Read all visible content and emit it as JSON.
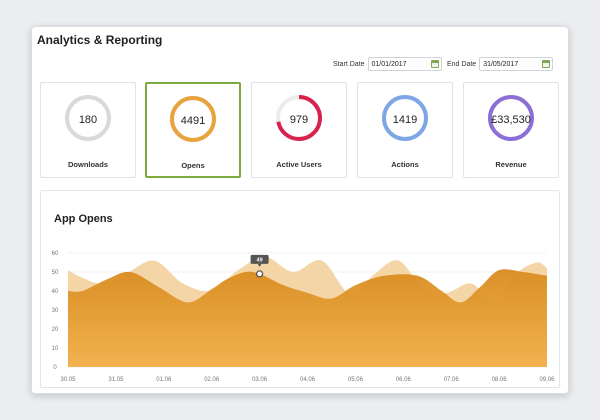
{
  "header": {
    "title": "Analytics & Reporting"
  },
  "filters": {
    "start": {
      "label": "Start Date",
      "value": "01/01/2017",
      "icon": "calendar-icon"
    },
    "end": {
      "label": "End Date",
      "value": "31/05/2017",
      "icon": "calendar-icon"
    }
  },
  "cards": [
    {
      "value": "180",
      "label": "Downloads",
      "color": "#d9d9d9",
      "progress": 1.0,
      "active": false
    },
    {
      "value": "4491",
      "label": "Opens",
      "color": "#e8a33d",
      "progress": 1.0,
      "active": true
    },
    {
      "value": "979",
      "label": "Active Users",
      "color": "#d6234f",
      "progress": 0.72,
      "active": false
    },
    {
      "value": "1419",
      "label": "Actions",
      "color": "#7ea6e6",
      "progress": 1.0,
      "active": false
    },
    {
      "value": "£33,530",
      "label": "Revenue",
      "color": "#8b6fd6",
      "progress": 1.0,
      "active": false
    }
  ],
  "chart": {
    "title": "App Opens",
    "tooltip": "49",
    "colors": {
      "front": "#e8a33d",
      "back": "#f3d5a6"
    }
  },
  "chart_data": {
    "type": "area",
    "title": "App Opens",
    "ylim": [
      0,
      60
    ],
    "yticks": [
      "0",
      "10",
      "20",
      "30",
      "40",
      "50",
      "60"
    ],
    "x": [
      "30.05",
      "31.05",
      "01.06",
      "02.06",
      "03.06",
      "04.06",
      "05.06",
      "06.06",
      "07.06",
      "08.06",
      "09.06"
    ],
    "grid": true,
    "series": [
      {
        "x": [
          0,
          0.3,
          0.7,
          1.2,
          1.8,
          2.4,
          3.0,
          3.5,
          4.1,
          4.7,
          5.3,
          5.9,
          6.4,
          6.9,
          7.4,
          7.9,
          8.4,
          8.9,
          9.4,
          9.8,
          10.0
        ],
        "values": [
          51,
          47,
          44,
          49,
          56,
          44,
          40,
          50,
          58,
          50,
          56,
          38,
          49,
          56,
          42,
          39,
          44,
          36,
          50,
          55,
          52
        ]
      },
      {
        "x": [
          0,
          0.3,
          0.8,
          1.3,
          1.9,
          2.5,
          3.0,
          3.3,
          3.7,
          4.0,
          4.5,
          5.0,
          5.5,
          6.0,
          6.6,
          7.3,
          7.8,
          8.2,
          8.6,
          9.0,
          9.5,
          10.0
        ],
        "values": [
          40,
          40,
          46,
          50,
          42,
          34,
          41,
          46,
          50,
          49,
          43,
          39,
          36,
          43,
          48,
          48,
          40,
          34,
          42,
          51,
          50,
          48
        ]
      }
    ],
    "highlight": {
      "x": 4.0,
      "value": 49
    }
  }
}
